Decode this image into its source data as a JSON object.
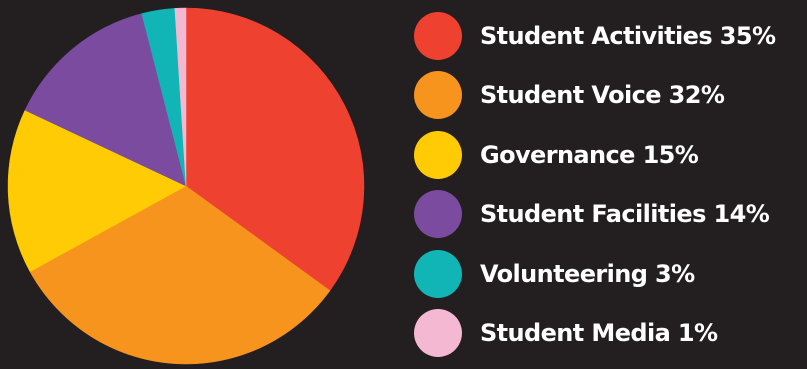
{
  "chart_data": {
    "type": "pie",
    "slices": [
      {
        "label": "Student Activities 35%",
        "name": "Student Activities",
        "value": 35,
        "color": "#ef4130"
      },
      {
        "label": "Student Voice 32%",
        "name": "Student Voice",
        "value": 32,
        "color": "#f7941e"
      },
      {
        "label": "Governance 15%",
        "name": "Governance",
        "value": 15,
        "color": "#ffcb05"
      },
      {
        "label": "Student Facilities 14%",
        "name": "Student Facilities",
        "value": 14,
        "color": "#7b4b9f"
      },
      {
        "label": "Volunteering 3%",
        "name": "Volunteering",
        "value": 3,
        "color": "#12b5b5"
      },
      {
        "label": "Student Media 1%",
        "name": "Student Media",
        "value": 1,
        "color": "#f5b8d2"
      }
    ],
    "legend_position": "right",
    "title": "",
    "background": "#231f20"
  }
}
